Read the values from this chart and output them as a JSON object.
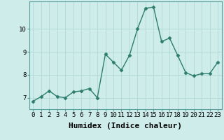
{
  "x": [
    0,
    1,
    2,
    3,
    4,
    5,
    6,
    7,
    8,
    9,
    10,
    11,
    12,
    13,
    14,
    15,
    16,
    17,
    18,
    19,
    20,
    21,
    22,
    23
  ],
  "y": [
    6.85,
    7.05,
    7.3,
    7.05,
    7.0,
    7.25,
    7.3,
    7.4,
    7.0,
    8.9,
    8.55,
    8.2,
    8.85,
    10.0,
    10.9,
    10.95,
    9.45,
    9.6,
    8.85,
    8.1,
    7.95,
    8.05,
    8.05,
    8.55
  ],
  "line_color": "#2d7d6e",
  "marker": "D",
  "marker_size": 2.5,
  "bg_color": "#cdecea",
  "grid_color": "#b0d8d5",
  "xlabel": "Humidex (Indice chaleur)",
  "xlim": [
    -0.5,
    23.5
  ],
  "ylim": [
    6.5,
    11.2
  ],
  "yticks": [
    7,
    8,
    9,
    10
  ],
  "xticks": [
    0,
    1,
    2,
    3,
    4,
    5,
    6,
    7,
    8,
    9,
    10,
    11,
    12,
    13,
    14,
    15,
    16,
    17,
    18,
    19,
    20,
    21,
    22,
    23
  ],
  "tick_fontsize": 6.5,
  "xlabel_fontsize": 8
}
